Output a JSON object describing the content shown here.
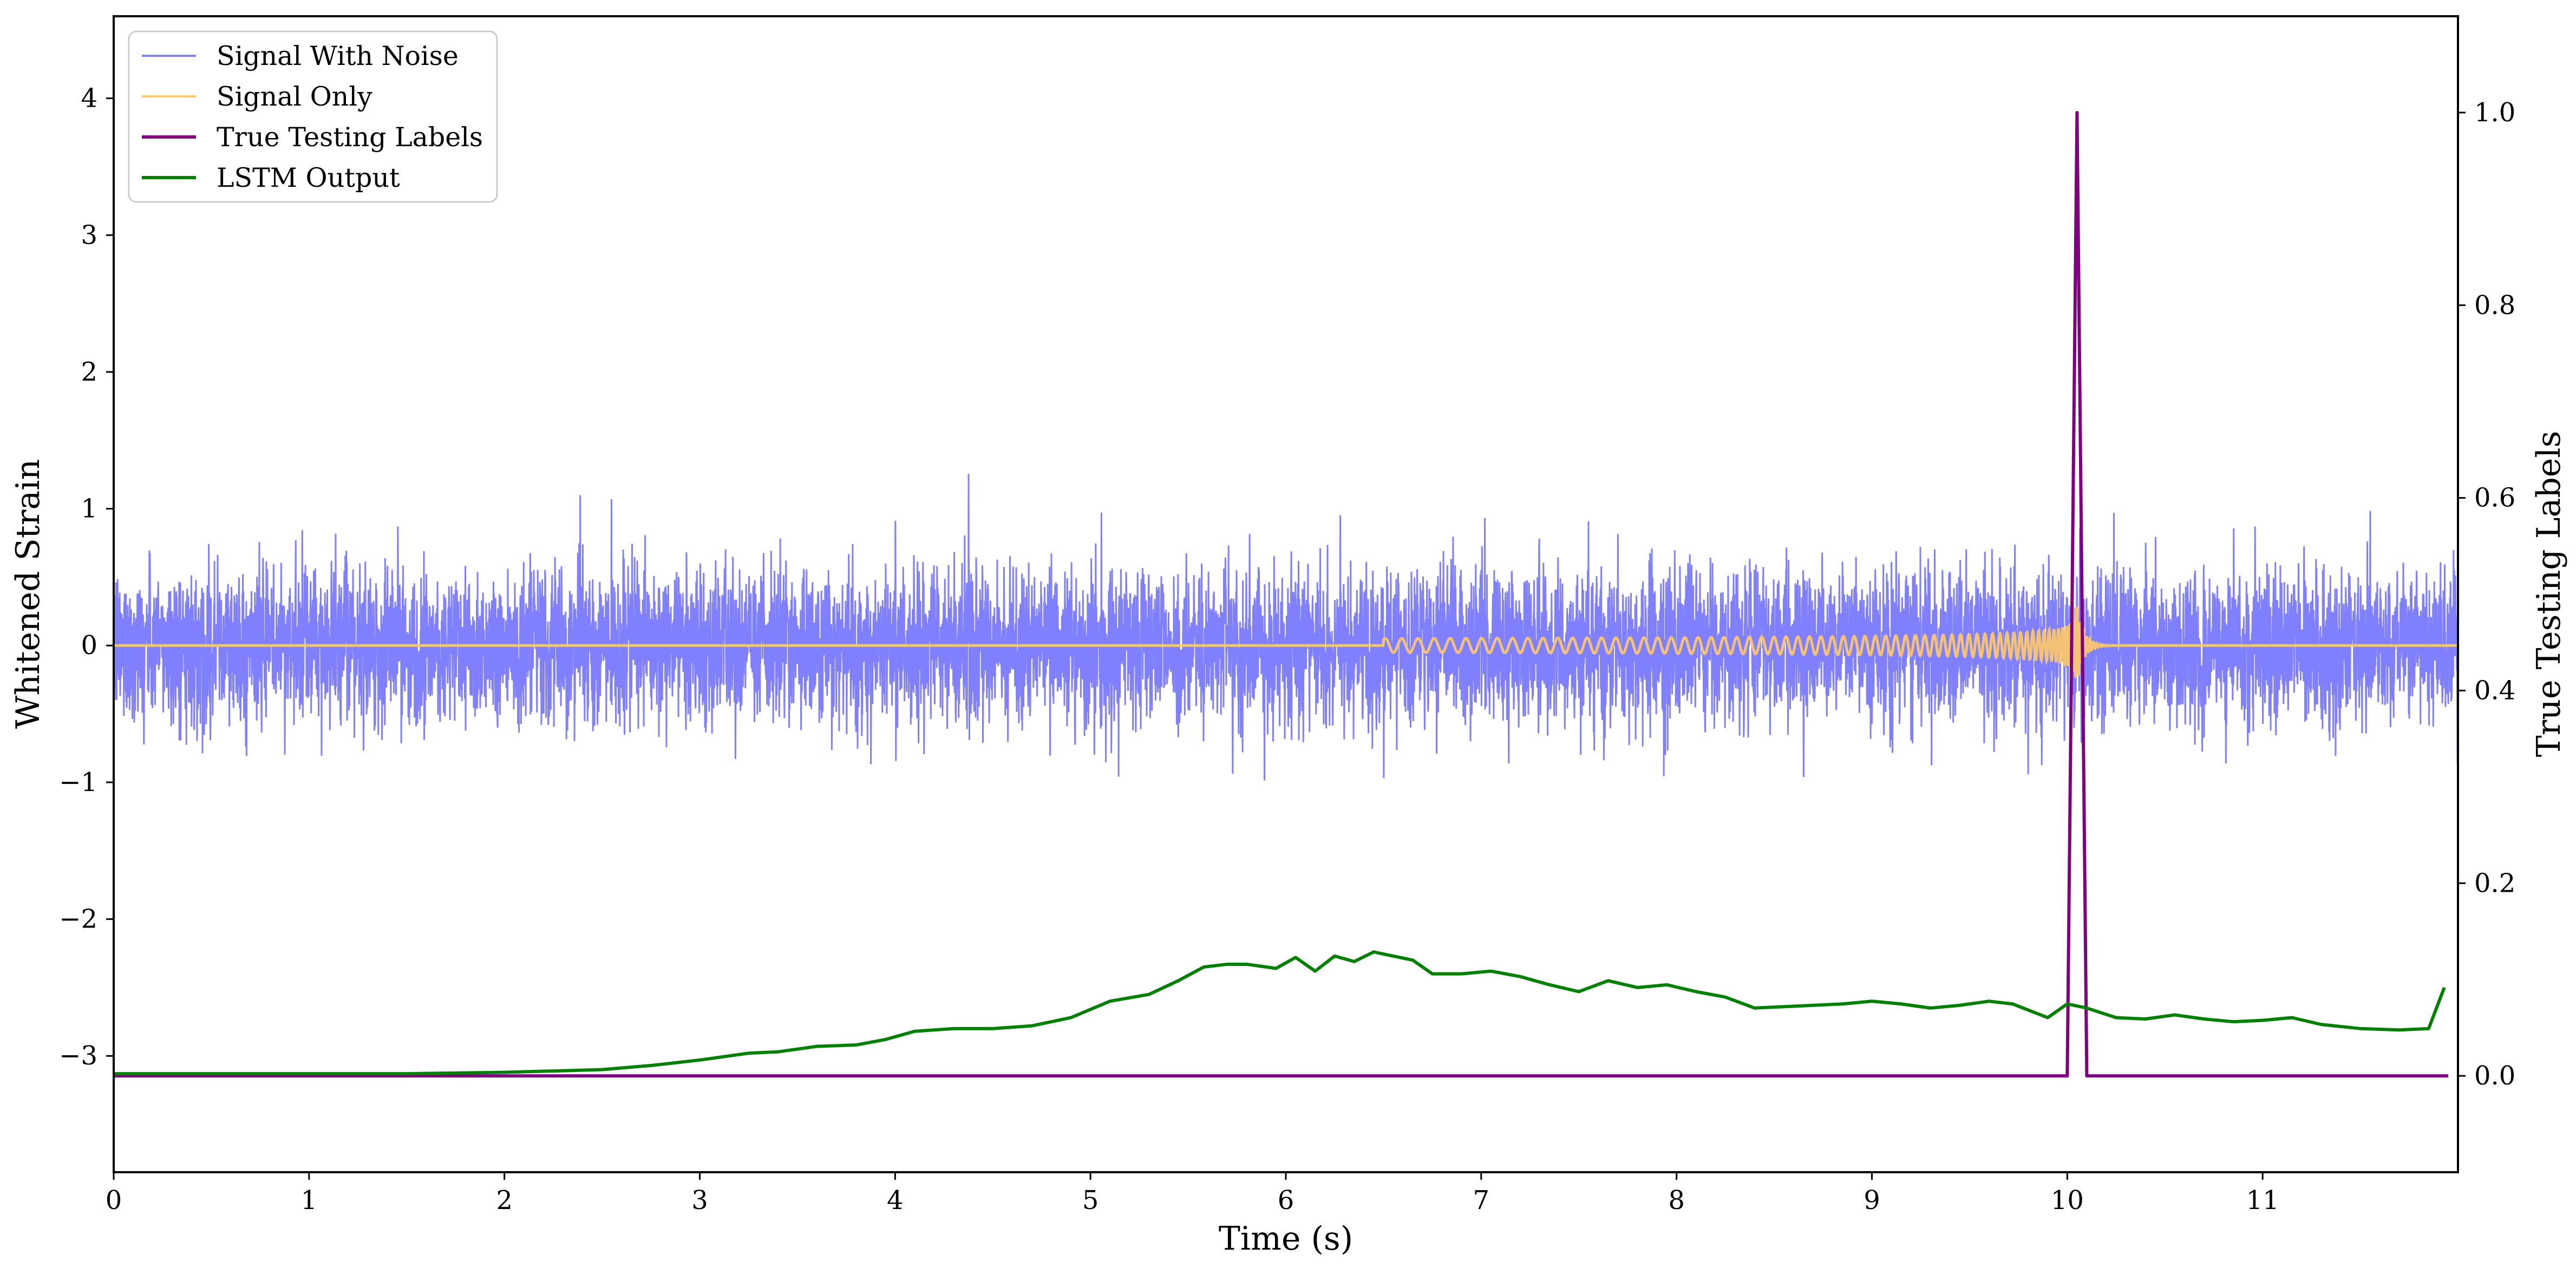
{
  "chart_data": {
    "type": "line",
    "xlabel": "Time (s)",
    "ylabel_left": "Whitened Strain",
    "ylabel_right": "True Testing Labels",
    "xlim": [
      0,
      12
    ],
    "ylim_left": [
      -3.85,
      4.6
    ],
    "ylim_right": [
      -0.1,
      1.1
    ],
    "x_ticks": [
      0,
      1,
      2,
      3,
      4,
      5,
      6,
      7,
      8,
      9,
      10,
      11
    ],
    "x_tick_labels": [
      "0",
      "1",
      "2",
      "3",
      "4",
      "5",
      "6",
      "7",
      "8",
      "9",
      "10",
      "11"
    ],
    "y_left_ticks": [
      4,
      3,
      2,
      1,
      0,
      -1,
      -2,
      -3
    ],
    "y_left_tick_labels": [
      "4",
      "3",
      "2",
      "1",
      "0",
      "−1",
      "−2",
      "−3"
    ],
    "y_right_ticks": [
      1.0,
      0.8,
      0.6,
      0.4,
      0.2,
      0.0
    ],
    "y_right_tick_labels": [
      "1.0",
      "0.8",
      "0.6",
      "0.4",
      "0.2",
      "0.0"
    ],
    "grid": false,
    "legend_position": "top-left",
    "series": [
      {
        "name": "Signal With Noise",
        "axis": "left",
        "color": "#8080ff",
        "kind": "noise",
        "center": 0,
        "typical_amplitude": 0.45,
        "max_amplitude": 1.25,
        "noise_seed": 12345
      },
      {
        "name": "Signal Only",
        "axis": "left",
        "color": "#ffc966",
        "kind": "chirp",
        "chirp_start": 6.5,
        "merger_time": 10.05,
        "peak_amplitude": 0.28,
        "ringdown_end": 10.3
      },
      {
        "name": "True Testing Labels",
        "axis": "right",
        "color": "#800080",
        "x": [
          0,
          10.0,
          10.05,
          10.1,
          11.95
        ],
        "y": [
          0,
          0,
          1.0,
          0,
          0
        ]
      },
      {
        "name": "LSTM Output",
        "axis": "left",
        "color": "#008000",
        "x": [
          0,
          0.5,
          1.0,
          1.5,
          2.0,
          2.5,
          2.75,
          3.0,
          3.25,
          3.4,
          3.6,
          3.8,
          3.95,
          4.1,
          4.3,
          4.5,
          4.7,
          4.9,
          5.1,
          5.3,
          5.45,
          5.58,
          5.7,
          5.8,
          5.95,
          6.05,
          6.15,
          6.25,
          6.35,
          6.45,
          6.55,
          6.65,
          6.75,
          6.9,
          7.05,
          7.2,
          7.35,
          7.5,
          7.65,
          7.8,
          7.95,
          8.1,
          8.25,
          8.4,
          8.55,
          8.7,
          8.85,
          9.0,
          9.15,
          9.3,
          9.45,
          9.6,
          9.72,
          9.9,
          10.0,
          10.1,
          10.25,
          10.4,
          10.55,
          10.7,
          10.85,
          11.0,
          11.15,
          11.3,
          11.5,
          11.7,
          11.85,
          11.93
        ],
        "y": [
          -3.13,
          -3.13,
          -3.13,
          -3.13,
          -3.12,
          -3.1,
          -3.07,
          -3.03,
          -2.98,
          -2.97,
          -2.93,
          -2.92,
          -2.88,
          -2.82,
          -2.8,
          -2.8,
          -2.78,
          -2.72,
          -2.6,
          -2.55,
          -2.45,
          -2.35,
          -2.33,
          -2.33,
          -2.36,
          -2.28,
          -2.38,
          -2.27,
          -2.31,
          -2.24,
          -2.27,
          -2.3,
          -2.4,
          -2.4,
          -2.38,
          -2.42,
          -2.48,
          -2.53,
          -2.45,
          -2.5,
          -2.48,
          -2.53,
          -2.57,
          -2.65,
          -2.64,
          -2.63,
          -2.62,
          -2.6,
          -2.62,
          -2.65,
          -2.63,
          -2.6,
          -2.62,
          -2.72,
          -2.62,
          -2.65,
          -2.72,
          -2.73,
          -2.7,
          -2.73,
          -2.75,
          -2.74,
          -2.72,
          -2.77,
          -2.8,
          -2.81,
          -2.8,
          -2.5
        ]
      }
    ]
  }
}
